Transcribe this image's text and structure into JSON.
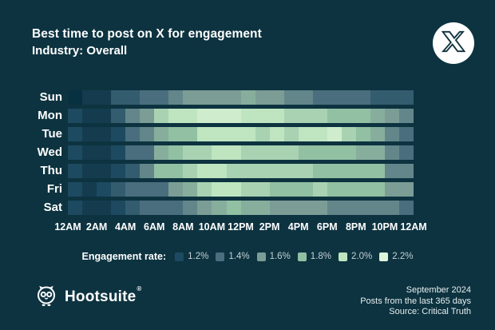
{
  "header": {
    "title": "Best time to post on X for engagement",
    "subtitle": "Industry: Overall"
  },
  "chart_data": {
    "type": "heatmap",
    "title": "Best time to post on X for engagement",
    "subtitle": "Industry: Overall",
    "unit": "engagement rate %",
    "x_tick_labels": [
      "12AM",
      "2AM",
      "4AM",
      "6AM",
      "8AM",
      "10AM",
      "12PM",
      "2PM",
      "4PM",
      "6PM",
      "8PM",
      "10PM",
      "12AM"
    ],
    "y_labels": [
      "Sun",
      "Mon",
      "Tue",
      "Wed",
      "Thu",
      "Fri",
      "Sat"
    ],
    "hours_per_row": 24,
    "series": [
      {
        "name": "Sun",
        "values": [
          1.0,
          1.1,
          1.1,
          1.3,
          1.3,
          1.4,
          1.4,
          1.5,
          1.6,
          1.6,
          1.6,
          1.6,
          1.7,
          1.6,
          1.6,
          1.5,
          1.5,
          1.4,
          1.4,
          1.4,
          1.4,
          1.3,
          1.3,
          1.3
        ]
      },
      {
        "name": "Mon",
        "values": [
          1.2,
          1.1,
          1.1,
          1.3,
          1.5,
          1.6,
          1.9,
          2.0,
          2.0,
          2.1,
          2.1,
          2.1,
          2.0,
          2.0,
          2.0,
          1.9,
          1.9,
          1.9,
          1.8,
          1.8,
          1.8,
          1.7,
          1.6,
          1.5
        ]
      },
      {
        "name": "Tue",
        "values": [
          1.2,
          1.1,
          1.1,
          1.2,
          1.4,
          1.5,
          1.7,
          1.8,
          1.8,
          2.0,
          2.0,
          2.0,
          2.0,
          1.9,
          2.0,
          1.9,
          2.0,
          2.0,
          2.1,
          1.9,
          1.8,
          1.7,
          1.5,
          1.4
        ]
      },
      {
        "name": "Wed",
        "values": [
          1.2,
          1.1,
          1.1,
          1.2,
          1.4,
          1.4,
          1.7,
          1.8,
          1.9,
          1.9,
          2.0,
          2.0,
          1.9,
          1.9,
          1.9,
          1.9,
          1.8,
          1.8,
          1.8,
          1.8,
          1.7,
          1.7,
          1.5,
          1.4
        ]
      },
      {
        "name": "Thu",
        "values": [
          1.2,
          1.1,
          1.1,
          1.2,
          1.3,
          1.5,
          1.8,
          1.8,
          1.9,
          2.0,
          2.0,
          1.9,
          1.9,
          1.9,
          1.9,
          1.9,
          1.9,
          1.8,
          1.8,
          1.8,
          1.8,
          1.8,
          1.5,
          1.5
        ]
      },
      {
        "name": "Fri",
        "values": [
          1.2,
          1.1,
          1.2,
          1.3,
          1.4,
          1.4,
          1.4,
          1.6,
          1.7,
          1.9,
          2.0,
          2.0,
          1.9,
          1.9,
          1.8,
          1.8,
          1.8,
          1.9,
          1.8,
          1.8,
          1.8,
          1.8,
          1.6,
          1.6
        ]
      },
      {
        "name": "Sat",
        "values": [
          1.2,
          1.1,
          1.1,
          1.2,
          1.3,
          1.4,
          1.4,
          1.4,
          1.5,
          1.6,
          1.7,
          1.8,
          1.7,
          1.7,
          1.6,
          1.6,
          1.6,
          1.6,
          1.5,
          1.5,
          1.5,
          1.5,
          1.5,
          1.4
        ]
      }
    ],
    "color_scale": {
      "anchors": [
        {
          "v": 1.0,
          "c": "#073040"
        },
        {
          "v": 1.1,
          "c": "#143c4e"
        },
        {
          "v": 1.2,
          "c": "#1d4a61"
        },
        {
          "v": 1.4,
          "c": "#4a6e7d"
        },
        {
          "v": 1.6,
          "c": "#7c9d96"
        },
        {
          "v": 1.8,
          "c": "#92c0a2"
        },
        {
          "v": 2.0,
          "c": "#bfe5c0"
        },
        {
          "v": 2.2,
          "c": "#dff5da"
        }
      ]
    },
    "legend_position": "bottom-center",
    "grid": false
  },
  "legend": {
    "title": "Engagement rate:",
    "entries": [
      {
        "label": "1.2%",
        "color": "#1d4a61"
      },
      {
        "label": "1.4%",
        "color": "#4a6e7d"
      },
      {
        "label": "1.6%",
        "color": "#7c9d96"
      },
      {
        "label": "1.8%",
        "color": "#92c0a2"
      },
      {
        "label": "2.0%",
        "color": "#bfe5c0"
      },
      {
        "label": "2.2%",
        "color": "#dff5da"
      }
    ]
  },
  "footer": {
    "brand": "Hootsuite",
    "reg": "®",
    "date": "September 2024",
    "range": "Posts from the last 365 days",
    "source": "Source: Critical Truth"
  },
  "colors": {
    "background": "#0d3340",
    "text": "#ffffff",
    "legend_text": "#c3d0d4"
  }
}
